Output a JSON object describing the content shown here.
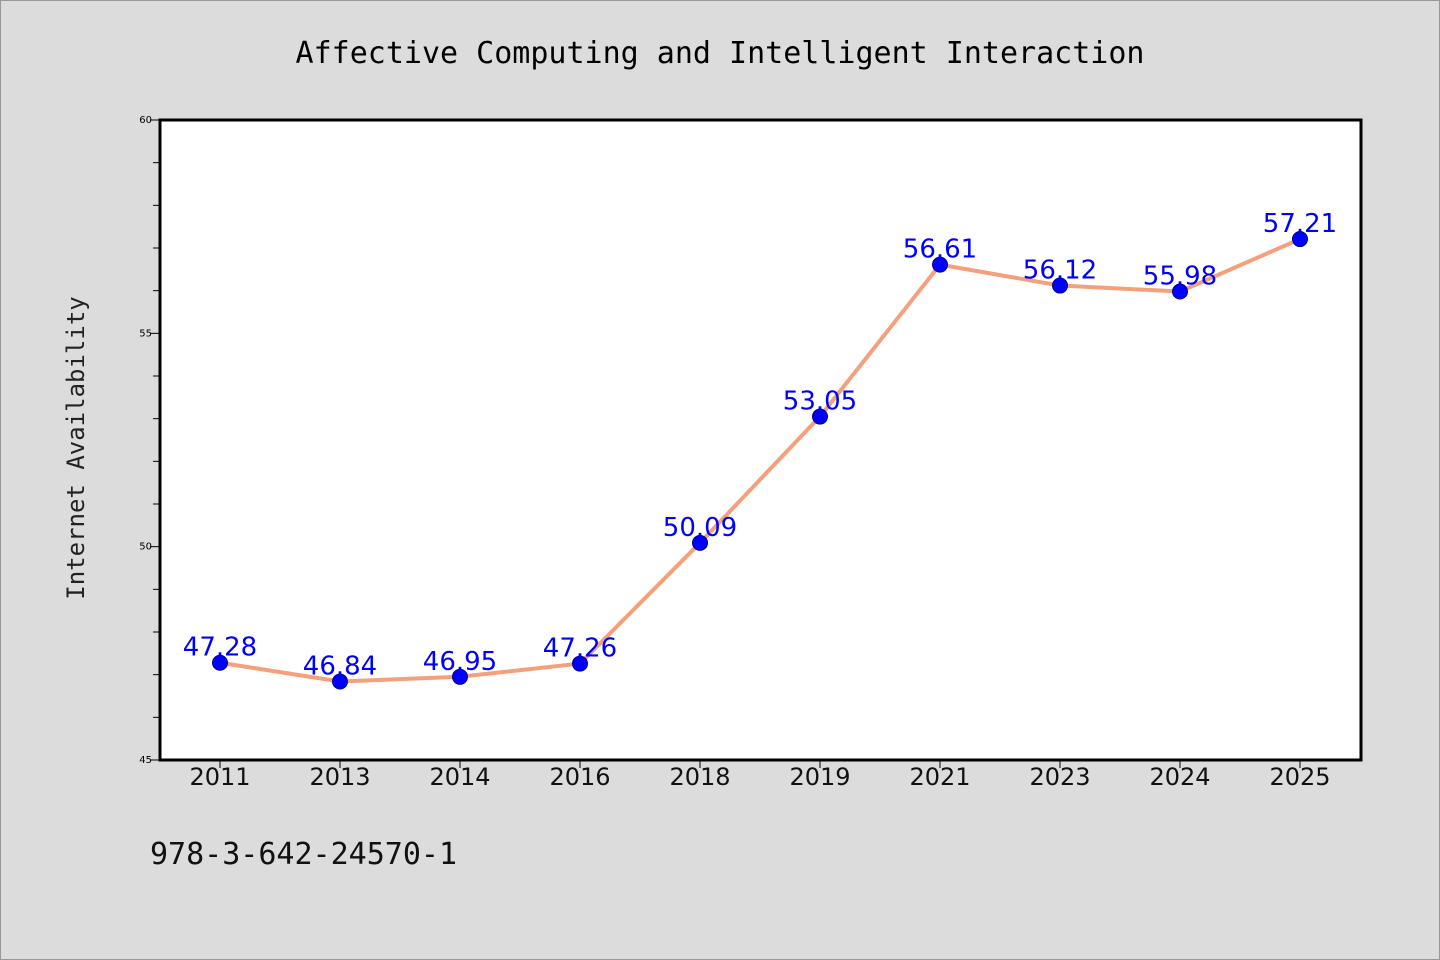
{
  "chart_data": {
    "type": "line",
    "title": "Affective Computing and Intelligent Interaction",
    "xlabel": "",
    "ylabel": "Internet Availability",
    "categories": [
      "2011",
      "2013",
      "2014",
      "2016",
      "2018",
      "2019",
      "2021",
      "2023",
      "2024",
      "2025"
    ],
    "series": [
      {
        "values": [
          47.28,
          46.84,
          46.95,
          47.26,
          50.09,
          53.05,
          56.61,
          56.12,
          55.98,
          57.21
        ]
      }
    ],
    "data_labels": [
      "47.28",
      "46.84",
      "46.95",
      "47.26",
      "50.09",
      "53.05",
      "56.61",
      "56.12",
      "55.98",
      "57.21"
    ],
    "ylim": [
      45,
      60
    ],
    "yticks": [
      45,
      50,
      55,
      60
    ],
    "grid": false,
    "legend": "none",
    "colors": {
      "line": "#f4a07c",
      "marker": "#0000ff",
      "label": "#0000ff",
      "background": "#dcdcdc",
      "plot_background": "#ffffff"
    }
  },
  "footer_text": "978-3-642-24570-1"
}
